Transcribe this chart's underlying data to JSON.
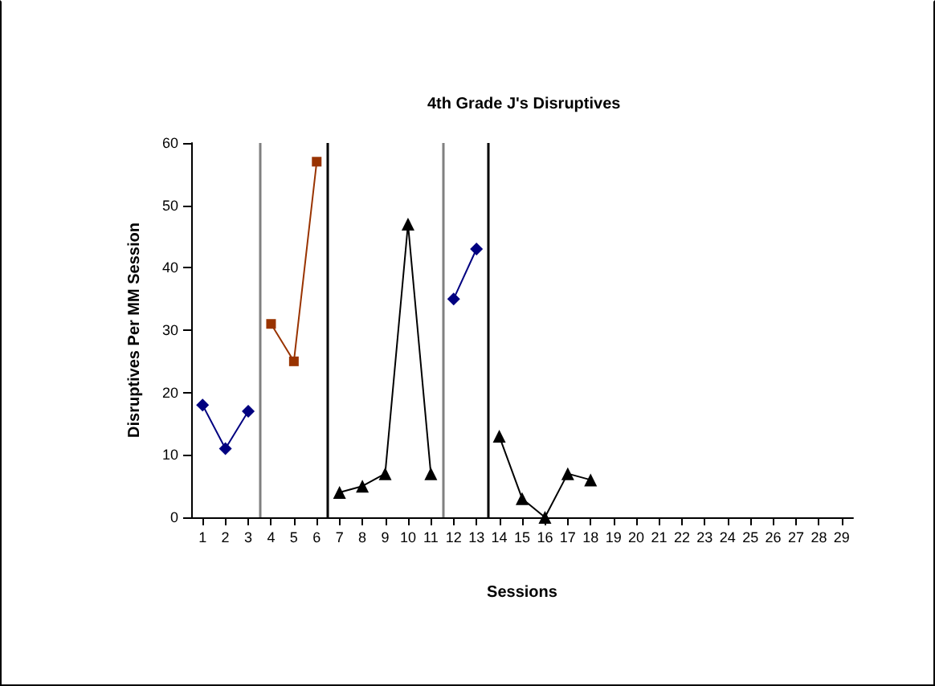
{
  "chart_data": {
    "type": "line",
    "title": "4th Grade J's Disruptives",
    "xlabel": "Sessions",
    "ylabel": "Disruptives Per MM Session",
    "xlim": [
      0.5,
      29.5
    ],
    "xticks": [
      1,
      2,
      3,
      4,
      5,
      6,
      7,
      8,
      9,
      10,
      11,
      12,
      13,
      14,
      15,
      16,
      17,
      18,
      19,
      20,
      21,
      22,
      23,
      24,
      25,
      26,
      27,
      28,
      29
    ],
    "ylim": [
      0,
      60
    ],
    "yticks": [
      0,
      10,
      20,
      30,
      40,
      50,
      60
    ],
    "grid": false,
    "series": [
      {
        "color": "#000080",
        "marker": "diamond",
        "x": [
          1,
          2,
          3
        ],
        "values": [
          18,
          11,
          17
        ]
      },
      {
        "color": "#993300",
        "marker": "square",
        "x": [
          4,
          5,
          6
        ],
        "values": [
          31,
          25,
          57
        ]
      },
      {
        "color": "#000000",
        "marker": "triangle",
        "x": [
          7,
          8,
          9,
          10,
          11
        ],
        "values": [
          4,
          5,
          7,
          47,
          7
        ]
      },
      {
        "color": "#000080",
        "marker": "diamond",
        "x": [
          12,
          13
        ],
        "values": [
          35,
          43
        ]
      },
      {
        "color": "#000000",
        "marker": "triangle",
        "x": [
          14,
          15,
          16,
          17,
          18
        ],
        "values": [
          13,
          3,
          0,
          7,
          6
        ]
      }
    ],
    "ref_lines": [
      {
        "axis": "x",
        "value": 3.5,
        "color": "#808080"
      },
      {
        "axis": "x",
        "value": 6.5,
        "color": "#000000"
      },
      {
        "axis": "x",
        "value": 11.5,
        "color": "#808080"
      },
      {
        "axis": "x",
        "value": 13.5,
        "color": "#000000"
      }
    ]
  }
}
